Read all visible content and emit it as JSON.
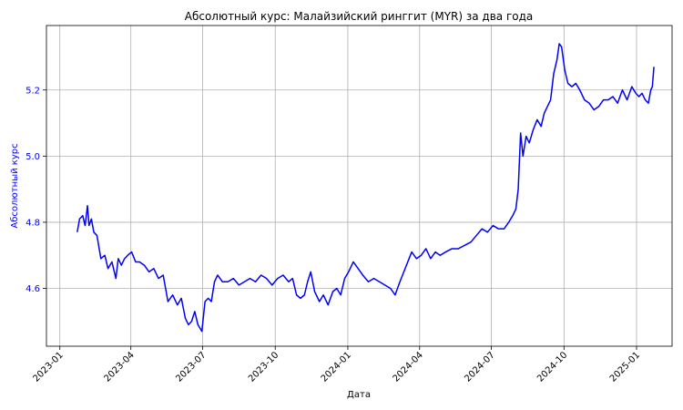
{
  "chart_data": {
    "type": "line",
    "title": "Абсолютный курс: Малайзийский ринггит (MYR) за два года",
    "xlabel": "Дата",
    "ylabel": "Абсолютный курс",
    "ylim": [
      4.425,
      5.395
    ],
    "xlim": [
      "2022-12-15",
      "2025-02-15"
    ],
    "y_ticks": [
      4.6,
      4.8,
      5.0,
      5.2
    ],
    "y_tick_labels": [
      "4.6",
      "4.8",
      "5.0",
      "5.2"
    ],
    "x_ticks": [
      "2023-01-01",
      "2023-04-01",
      "2023-07-01",
      "2023-10-01",
      "2024-01-01",
      "2024-04-01",
      "2024-07-01",
      "2024-10-01",
      "2025-01-01"
    ],
    "x_tick_labels": [
      "2023-01",
      "2023-04",
      "2023-07",
      "2023-10",
      "2024-01",
      "2024-04",
      "2024-07",
      "2024-10",
      "2025-01"
    ],
    "grid": true,
    "colors": {
      "line": "#0000ff",
      "ylabel": "#0000ff",
      "ytick": "#0000ff"
    },
    "series": [
      {
        "x": [
          "2023-01-23",
          "2023-01-26",
          "2023-01-30",
          "2023-02-02",
          "2023-02-05",
          "2023-02-07",
          "2023-02-10",
          "2023-02-13",
          "2023-02-17",
          "2023-02-22",
          "2023-02-27",
          "2023-03-03",
          "2023-03-08",
          "2023-03-13",
          "2023-03-16",
          "2023-03-20",
          "2023-03-24",
          "2023-03-28",
          "2023-04-02",
          "2023-04-07",
          "2023-04-12",
          "2023-04-18",
          "2023-04-24",
          "2023-04-30",
          "2023-05-06",
          "2023-05-12",
          "2023-05-18",
          "2023-05-24",
          "2023-05-30",
          "2023-06-04",
          "2023-06-09",
          "2023-06-13",
          "2023-06-17",
          "2023-06-21",
          "2023-06-25",
          "2023-06-30",
          "2023-07-04",
          "2023-07-08",
          "2023-07-12",
          "2023-07-16",
          "2023-07-20",
          "2023-07-26",
          "2023-08-02",
          "2023-08-09",
          "2023-08-16",
          "2023-08-23",
          "2023-08-30",
          "2023-09-06",
          "2023-09-13",
          "2023-09-20",
          "2023-09-27",
          "2023-10-04",
          "2023-10-11",
          "2023-10-18",
          "2023-10-23",
          "2023-10-28",
          "2023-11-02",
          "2023-11-07",
          "2023-11-11",
          "2023-11-15",
          "2023-11-20",
          "2023-11-26",
          "2023-12-01",
          "2023-12-07",
          "2023-12-13",
          "2023-12-18",
          "2023-12-23",
          "2023-12-28",
          "2024-01-02",
          "2024-01-08",
          "2024-01-14",
          "2024-01-20",
          "2024-01-27",
          "2024-02-03",
          "2024-02-10",
          "2024-02-17",
          "2024-02-24",
          "2024-03-01",
          "2024-03-07",
          "2024-03-12",
          "2024-03-17",
          "2024-03-22",
          "2024-03-28",
          "2024-04-03",
          "2024-04-09",
          "2024-04-15",
          "2024-04-21",
          "2024-04-27",
          "2024-05-04",
          "2024-05-12",
          "2024-05-20",
          "2024-05-28",
          "2024-06-05",
          "2024-06-12",
          "2024-06-19",
          "2024-06-26",
          "2024-07-03",
          "2024-07-10",
          "2024-07-17",
          "2024-07-23",
          "2024-07-28",
          "2024-08-01",
          "2024-08-04",
          "2024-08-07",
          "2024-08-10",
          "2024-08-14",
          "2024-08-18",
          "2024-08-23",
          "2024-08-28",
          "2024-09-02",
          "2024-09-06",
          "2024-09-10",
          "2024-09-14",
          "2024-09-18",
          "2024-09-22",
          "2024-09-25",
          "2024-09-28",
          "2024-10-02",
          "2024-10-06",
          "2024-10-11",
          "2024-10-16",
          "2024-10-21",
          "2024-10-27",
          "2024-11-02",
          "2024-11-08",
          "2024-11-14",
          "2024-11-20",
          "2024-11-26",
          "2024-12-02",
          "2024-12-08",
          "2024-12-14",
          "2024-12-20",
          "2024-12-26",
          "2024-12-31",
          "2025-01-04",
          "2025-01-08",
          "2025-01-12",
          "2025-01-16",
          "2025-01-19",
          "2025-01-21",
          "2025-01-23"
        ],
        "values": [
          4.77,
          4.81,
          4.82,
          4.79,
          4.85,
          4.79,
          4.81,
          4.77,
          4.76,
          4.69,
          4.7,
          4.66,
          4.68,
          4.63,
          4.69,
          4.67,
          4.69,
          4.7,
          4.71,
          4.68,
          4.68,
          4.67,
          4.65,
          4.66,
          4.63,
          4.64,
          4.56,
          4.58,
          4.55,
          4.57,
          4.51,
          4.49,
          4.5,
          4.53,
          4.49,
          4.47,
          4.56,
          4.57,
          4.56,
          4.62,
          4.64,
          4.62,
          4.62,
          4.63,
          4.61,
          4.62,
          4.63,
          4.62,
          4.64,
          4.63,
          4.61,
          4.63,
          4.64,
          4.62,
          4.63,
          4.58,
          4.57,
          4.58,
          4.62,
          4.65,
          4.59,
          4.56,
          4.58,
          4.55,
          4.59,
          4.6,
          4.58,
          4.63,
          4.65,
          4.68,
          4.66,
          4.64,
          4.62,
          4.63,
          4.62,
          4.61,
          4.6,
          4.58,
          4.62,
          4.65,
          4.68,
          4.71,
          4.69,
          4.7,
          4.72,
          4.69,
          4.71,
          4.7,
          4.71,
          4.72,
          4.72,
          4.73,
          4.74,
          4.76,
          4.78,
          4.77,
          4.79,
          4.78,
          4.78,
          4.8,
          4.82,
          4.84,
          4.9,
          5.07,
          5.0,
          5.06,
          5.04,
          5.08,
          5.11,
          5.09,
          5.13,
          5.15,
          5.17,
          5.25,
          5.29,
          5.34,
          5.33,
          5.26,
          5.22,
          5.21,
          5.22,
          5.2,
          5.17,
          5.16,
          5.14,
          5.15,
          5.17,
          5.17,
          5.18,
          5.16,
          5.2,
          5.17,
          5.21,
          5.19,
          5.18,
          5.19,
          5.17,
          5.16,
          5.2,
          5.21,
          5.27
        ]
      }
    ]
  }
}
